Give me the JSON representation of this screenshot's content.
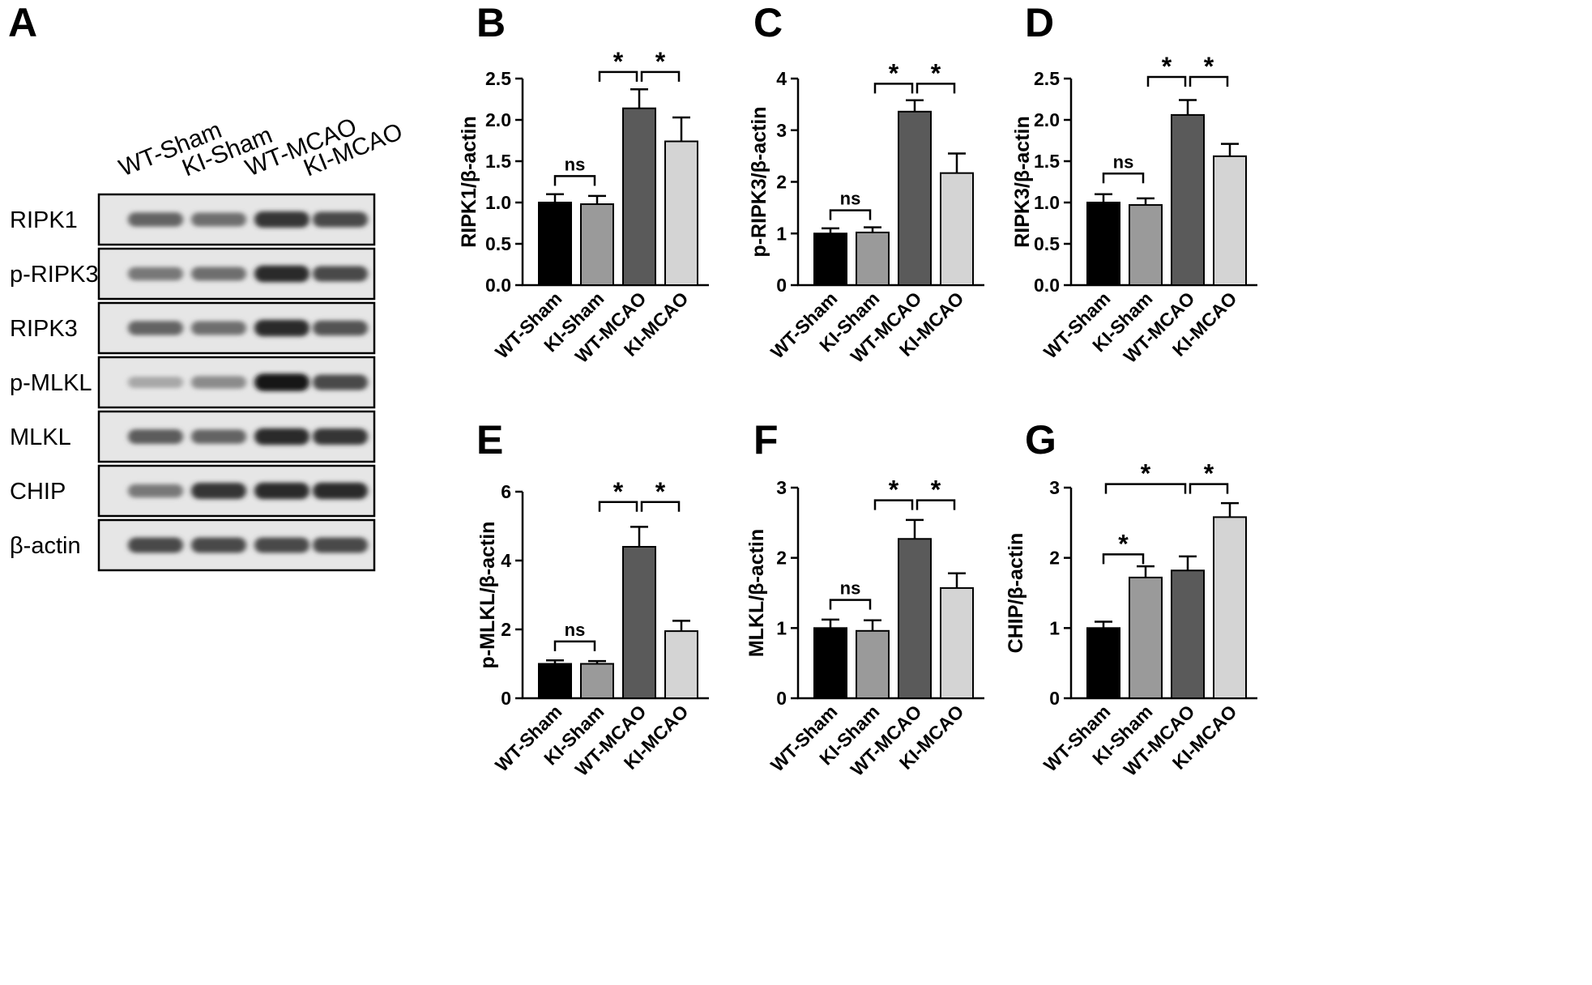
{
  "figure": {
    "panel_a": {
      "letter": "A",
      "lanes": [
        "WT-Sham",
        "KI-Sham",
        "WT-MCAO",
        "KI-MCAO"
      ],
      "rows": [
        {
          "label": "RIPK1",
          "intensity": [
            0.55,
            0.5,
            0.8,
            0.7
          ]
        },
        {
          "label": "p-RIPK3",
          "intensity": [
            0.45,
            0.5,
            0.85,
            0.7
          ]
        },
        {
          "label": "RIPK3",
          "intensity": [
            0.55,
            0.5,
            0.85,
            0.65
          ]
        },
        {
          "label": "p-MLKL",
          "intensity": [
            0.2,
            0.35,
            0.95,
            0.7
          ]
        },
        {
          "label": "MLKL",
          "intensity": [
            0.6,
            0.55,
            0.85,
            0.8
          ]
        },
        {
          "label": "CHIP",
          "intensity": [
            0.45,
            0.8,
            0.85,
            0.85
          ]
        },
        {
          "label": "β-actin",
          "intensity": [
            0.7,
            0.7,
            0.7,
            0.7
          ]
        }
      ]
    }
  },
  "chart_data": [
    {
      "id": "B",
      "letter": "B",
      "type": "bar",
      "categories": [
        "WT-Sham",
        "KI-Sham",
        "WT-MCAO",
        "KI-MCAO"
      ],
      "values": [
        1.0,
        0.98,
        2.14,
        1.74
      ],
      "errors": [
        0.1,
        0.1,
        0.23,
        0.29
      ],
      "ylabel": "RIPK1/β-actin",
      "ylim": [
        0,
        2.5
      ],
      "yticks": [
        "0.0",
        "0.5",
        "1.0",
        "1.5",
        "2.0",
        "2.5"
      ],
      "colors": [
        "#000000",
        "#9a9a9a",
        "#5a5a5a",
        "#d4d4d4"
      ],
      "comparisons": [
        {
          "from": 0,
          "to": 1,
          "label": "ns",
          "y": 1.32
        },
        {
          "from": 1,
          "to": 2,
          "label": "*",
          "y": 2.58
        },
        {
          "from": 2,
          "to": 3,
          "label": "*",
          "y": 2.58
        }
      ]
    },
    {
      "id": "C",
      "letter": "C",
      "type": "bar",
      "categories": [
        "WT-Sham",
        "KI-Sham",
        "WT-MCAO",
        "KI-MCAO"
      ],
      "values": [
        1.0,
        1.02,
        3.36,
        2.17
      ],
      "errors": [
        0.1,
        0.1,
        0.22,
        0.38
      ],
      "ylabel": "p-RIPK3/β-actin",
      "ylim": [
        0,
        4
      ],
      "yticks": [
        "0",
        "1",
        "2",
        "3",
        "4"
      ],
      "colors": [
        "#000000",
        "#9a9a9a",
        "#5a5a5a",
        "#d4d4d4"
      ],
      "comparisons": [
        {
          "from": 0,
          "to": 1,
          "label": "ns",
          "y": 1.45
        },
        {
          "from": 1,
          "to": 2,
          "label": "*",
          "y": 3.9
        },
        {
          "from": 2,
          "to": 3,
          "label": "*",
          "y": 3.9
        }
      ]
    },
    {
      "id": "D",
      "letter": "D",
      "type": "bar",
      "categories": [
        "WT-Sham",
        "KI-Sham",
        "WT-MCAO",
        "KI-MCAO"
      ],
      "values": [
        1.0,
        0.97,
        2.06,
        1.56
      ],
      "errors": [
        0.1,
        0.08,
        0.18,
        0.15
      ],
      "ylabel": "RIPK3/β-actin",
      "ylim": [
        0,
        2.5
      ],
      "yticks": [
        "0.0",
        "0.5",
        "1.0",
        "1.5",
        "2.0",
        "2.5"
      ],
      "colors": [
        "#000000",
        "#9a9a9a",
        "#5a5a5a",
        "#d4d4d4"
      ],
      "comparisons": [
        {
          "from": 0,
          "to": 1,
          "label": "ns",
          "y": 1.35
        },
        {
          "from": 1,
          "to": 2,
          "label": "*",
          "y": 2.52
        },
        {
          "from": 2,
          "to": 3,
          "label": "*",
          "y": 2.52
        }
      ]
    },
    {
      "id": "E",
      "letter": "E",
      "type": "bar",
      "categories": [
        "WT-Sham",
        "KI-Sham",
        "WT-MCAO",
        "KI-MCAO"
      ],
      "values": [
        1.0,
        1.0,
        4.4,
        1.95
      ],
      "errors": [
        0.1,
        0.08,
        0.58,
        0.3
      ],
      "ylabel": "p-MLKL/β-actin",
      "ylim": [
        0,
        6
      ],
      "yticks": [
        "0",
        "2",
        "4",
        "6"
      ],
      "colors": [
        "#000000",
        "#9a9a9a",
        "#5a5a5a",
        "#d4d4d4"
      ],
      "comparisons": [
        {
          "from": 0,
          "to": 1,
          "label": "ns",
          "y": 1.65
        },
        {
          "from": 1,
          "to": 2,
          "label": "*",
          "y": 5.7
        },
        {
          "from": 2,
          "to": 3,
          "label": "*",
          "y": 5.7
        }
      ]
    },
    {
      "id": "F",
      "letter": "F",
      "type": "bar",
      "categories": [
        "WT-Sham",
        "KI-Sham",
        "WT-MCAO",
        "KI-MCAO"
      ],
      "values": [
        1.0,
        0.96,
        2.27,
        1.57
      ],
      "errors": [
        0.12,
        0.15,
        0.27,
        0.21
      ],
      "ylabel": "MLKL/β-actin",
      "ylim": [
        0,
        3
      ],
      "yticks": [
        "0",
        "1",
        "2",
        "3"
      ],
      "colors": [
        "#000000",
        "#9a9a9a",
        "#5a5a5a",
        "#d4d4d4"
      ],
      "comparisons": [
        {
          "from": 0,
          "to": 1,
          "label": "ns",
          "y": 1.4
        },
        {
          "from": 1,
          "to": 2,
          "label": "*",
          "y": 2.82
        },
        {
          "from": 2,
          "to": 3,
          "label": "*",
          "y": 2.82
        }
      ]
    },
    {
      "id": "G",
      "letter": "G",
      "type": "bar",
      "categories": [
        "WT-Sham",
        "KI-Sham",
        "WT-MCAO",
        "KI-MCAO"
      ],
      "values": [
        1.0,
        1.72,
        1.82,
        2.58
      ],
      "errors": [
        0.09,
        0.16,
        0.2,
        0.2
      ],
      "ylabel": "CHIP/β-actin",
      "ylim": [
        0,
        3
      ],
      "yticks": [
        "0",
        "1",
        "2",
        "3"
      ],
      "colors": [
        "#000000",
        "#9a9a9a",
        "#5a5a5a",
        "#d4d4d4"
      ],
      "comparisons": [
        {
          "from": 0,
          "to": 1,
          "label": "*",
          "y": 2.05
        },
        {
          "from": 0,
          "to": 2,
          "label": "*",
          "y": 3.05
        },
        {
          "from": 2,
          "to": 3,
          "label": "*",
          "y": 3.05
        }
      ]
    }
  ]
}
